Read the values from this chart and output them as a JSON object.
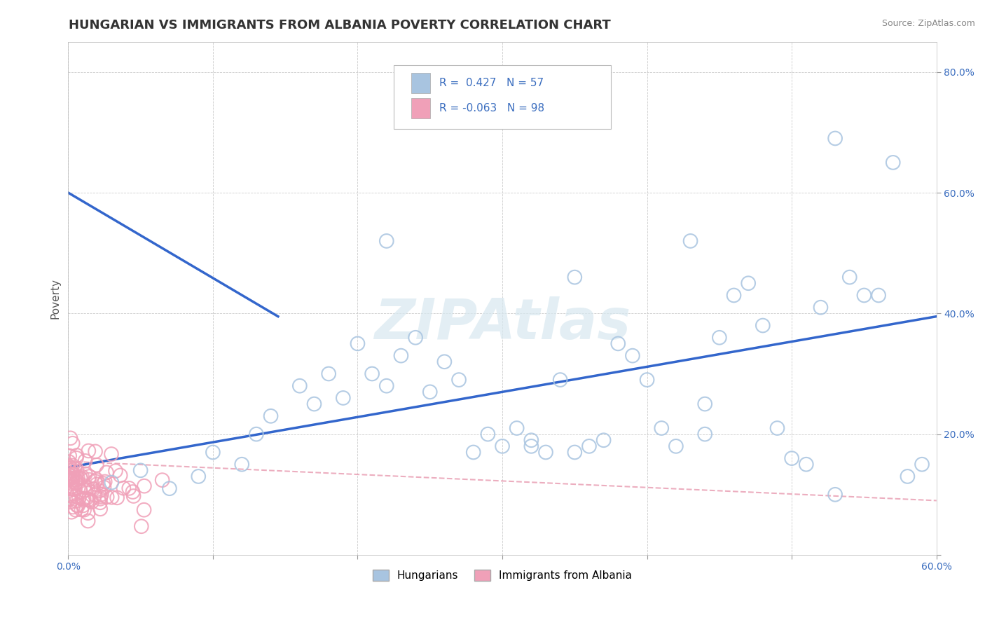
{
  "title": "HUNGARIAN VS IMMIGRANTS FROM ALBANIA POVERTY CORRELATION CHART",
  "source": "Source: ZipAtlas.com",
  "ylabel": "Poverty",
  "xlim": [
    0.0,
    0.6
  ],
  "ylim": [
    0.0,
    0.85
  ],
  "ytick_positions": [
    0.0,
    0.2,
    0.4,
    0.6,
    0.8
  ],
  "ytick_labels": [
    "",
    "20.0%",
    "40.0%",
    "60.0%",
    "80.0%"
  ],
  "xtick_positions": [
    0.0,
    0.1,
    0.2,
    0.3,
    0.4,
    0.5,
    0.6
  ],
  "xtick_labels": [
    "0.0%",
    "",
    "",
    "",
    "",
    "",
    "60.0%"
  ],
  "hungarian_color": "#a8c4e0",
  "albanian_color": "#f0a0b8",
  "hungarian_line_color": "#3366cc",
  "albanian_line_color": "#e89ab0",
  "text_color": "#3a6dbf",
  "legend_r1": "R =  0.427",
  "legend_n1": "N = 57",
  "legend_r2": "R = -0.063",
  "legend_n2": "N = 98",
  "background_color": "#ffffff",
  "grid_color": "#cccccc",
  "watermark": "ZIPAtlas",
  "h_line_x0": 0.0,
  "h_line_y0": 0.145,
  "h_line_x1": 0.6,
  "h_line_y1": 0.395,
  "a_line_x0": 0.0,
  "a_line_y0": 0.155,
  "a_line_x1": 0.6,
  "a_line_y1": 0.09
}
